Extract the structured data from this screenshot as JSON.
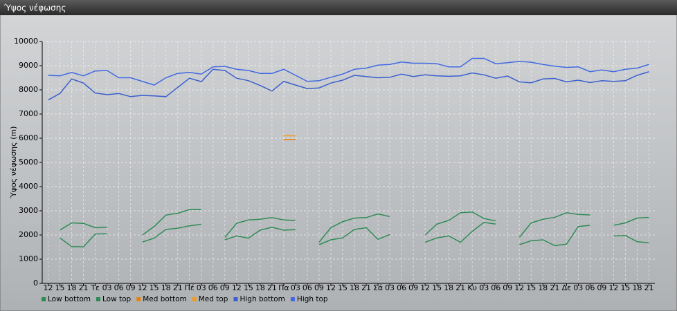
{
  "chart_data": {
    "type": "line",
    "title": "Ύψος νέφωσης",
    "y_label": "Ύψος νέφωσης (m)",
    "categories": [
      "12",
      "15",
      "18",
      "21",
      "Τε",
      "03",
      "06",
      "09",
      "12",
      "15",
      "18",
      "21",
      "Πέ",
      "03",
      "06",
      "09",
      "12",
      "15",
      "18",
      "21",
      "Πα",
      "03",
      "06",
      "09",
      "12",
      "15",
      "18",
      "21",
      "Σά",
      "03",
      "06",
      "09",
      "12",
      "15",
      "18",
      "21",
      "Κυ",
      "03",
      "06",
      "09",
      "12",
      "15",
      "18",
      "21",
      "Δε",
      "03",
      "06",
      "09",
      "12",
      "15",
      "18",
      "21"
    ],
    "ylim": [
      0,
      10000
    ],
    "yticks": [
      0,
      1000,
      2000,
      3000,
      4000,
      5000,
      6000,
      7000,
      8000,
      9000,
      10000
    ],
    "grid": true,
    "legend": "bottom",
    "series": [
      {
        "name": "Low bottom",
        "color": "#2e8b57",
        "values": [
          null,
          1880,
          1520,
          1510,
          2040,
          2050,
          null,
          null,
          1710,
          1870,
          2230,
          2280,
          2380,
          2440,
          null,
          1800,
          1960,
          1870,
          2200,
          2320,
          2200,
          2220,
          null,
          1600,
          1800,
          1880,
          2230,
          2300,
          1820,
          2020,
          null,
          null,
          1700,
          1880,
          1960,
          1700,
          2150,
          2520,
          2450,
          null,
          1600,
          1760,
          1800,
          1560,
          1620,
          2350,
          2400,
          null,
          1960,
          1980,
          1720,
          1680
        ]
      },
      {
        "name": "Low top",
        "color": "#2e8b57",
        "values": [
          null,
          2200,
          2500,
          2480,
          2300,
          2320,
          null,
          null,
          2000,
          2350,
          2820,
          2900,
          3050,
          3050,
          null,
          1900,
          2480,
          2620,
          2650,
          2720,
          2620,
          2600,
          null,
          1700,
          2300,
          2550,
          2700,
          2720,
          2870,
          2760,
          null,
          null,
          2000,
          2450,
          2600,
          2920,
          2950,
          2680,
          2580,
          null,
          1900,
          2500,
          2650,
          2730,
          2920,
          2850,
          2830,
          null,
          2400,
          2500,
          2700,
          2730
        ]
      },
      {
        "name": "Med bottom",
        "color": "#e8820c",
        "values": [
          null,
          null,
          null,
          null,
          null,
          null,
          null,
          null,
          null,
          null,
          null,
          null,
          null,
          null,
          null,
          null,
          null,
          null,
          null,
          null,
          5950,
          5950,
          null,
          null,
          null,
          null,
          null,
          null,
          null,
          null,
          null,
          null,
          null,
          null,
          null,
          null,
          null,
          null,
          null,
          null,
          null,
          null,
          null,
          null,
          null,
          null,
          null,
          null,
          null,
          null,
          null,
          null
        ]
      },
      {
        "name": "Med top",
        "color": "#f39a1e",
        "values": [
          null,
          null,
          null,
          null,
          null,
          null,
          null,
          null,
          null,
          null,
          null,
          null,
          null,
          null,
          null,
          null,
          null,
          null,
          null,
          null,
          6100,
          6100,
          null,
          null,
          null,
          null,
          null,
          null,
          null,
          null,
          null,
          null,
          null,
          null,
          null,
          null,
          null,
          null,
          null,
          null,
          null,
          null,
          null,
          null,
          null,
          null,
          null,
          null,
          null,
          null,
          null,
          null
        ]
      },
      {
        "name": "High bottom",
        "color": "#3a5fcd",
        "values": [
          7580,
          7850,
          8450,
          8280,
          7870,
          7800,
          7850,
          7720,
          7770,
          7750,
          7720,
          8100,
          8480,
          8340,
          8850,
          8800,
          8480,
          8380,
          8180,
          7950,
          8350,
          8200,
          8050,
          8080,
          8280,
          8400,
          8600,
          8550,
          8500,
          8520,
          8650,
          8550,
          8620,
          8580,
          8560,
          8580,
          8700,
          8620,
          8480,
          8570,
          8330,
          8290,
          8450,
          8470,
          8330,
          8400,
          8300,
          8380,
          8350,
          8380,
          8600,
          8750
        ]
      },
      {
        "name": "High top",
        "color": "#4169e1",
        "values": [
          8600,
          8580,
          8720,
          8580,
          8780,
          8800,
          8500,
          8500,
          8350,
          8200,
          8500,
          8680,
          8720,
          8650,
          8950,
          8970,
          8850,
          8800,
          8680,
          8680,
          8850,
          8600,
          8350,
          8380,
          8520,
          8650,
          8850,
          8900,
          9020,
          9050,
          9150,
          9100,
          9100,
          9080,
          8950,
          8950,
          9300,
          9300,
          9080,
          9120,
          9180,
          9140,
          9050,
          8980,
          8930,
          8950,
          8750,
          8820,
          8750,
          8850,
          8900,
          9050
        ]
      }
    ]
  }
}
